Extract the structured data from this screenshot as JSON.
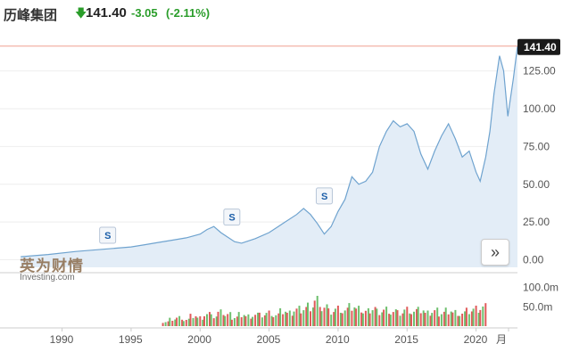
{
  "header": {
    "title": "历峰集团",
    "arrow_icon": "down-arrow-icon",
    "price": "141.40",
    "change": "-3.05",
    "change_pct": "(-2.11%)",
    "change_color": "#2a9d2a"
  },
  "watermark": {
    "brand_cn": "英为财情",
    "brand_en": "Investing.com"
  },
  "nav_button": {
    "icon": "double-chevron-right-icon",
    "label": "»"
  },
  "split_marker_label": "S",
  "colors": {
    "line": "#6fa3cf",
    "area": "#e3edf7",
    "price_line": "#f0a090",
    "badge": "#1a1a1a",
    "vol_up": "#e05a5a",
    "vol_down": "#6dbf6d"
  },
  "chart_data": [
    {
      "type": "area",
      "series": [
        {
          "x": [
            1987.0,
            1989.0,
            1991.0,
            1993.0,
            1995.0,
            1996.0,
            1997.0,
            1998.0,
            1999.0,
            2000.0,
            2000.5,
            2001.0,
            2001.5,
            2002.0,
            2002.5,
            2003.0,
            2004.0,
            2005.0,
            2006.0,
            2007.0,
            2007.5,
            2008.0,
            2008.5,
            2009.0,
            2009.5,
            2010.0,
            2010.5,
            2011.0,
            2011.5,
            2012.0,
            2012.5,
            2013.0,
            2013.5,
            2014.0,
            2014.5,
            2015.0,
            2015.5,
            2016.0,
            2016.5,
            2017.0,
            2017.5,
            2018.0,
            2018.5,
            2019.0,
            2019.5,
            2020.0,
            2020.3,
            2020.7,
            2021.0,
            2021.3,
            2021.7,
            2022.0,
            2022.3,
            2022.7,
            2023.0
          ],
          "y": [
            2.0,
            3.5,
            5.5,
            7.0,
            8.5,
            10.0,
            11.5,
            13.0,
            14.5,
            17.0,
            20.0,
            22.0,
            18.0,
            15.0,
            12.0,
            11.0,
            14.0,
            18.0,
            24.0,
            30.0,
            34.0,
            30.0,
            24.0,
            17.0,
            22.0,
            32.0,
            40.0,
            55.0,
            50.0,
            52.0,
            58.0,
            75.0,
            85.0,
            92.0,
            88.0,
            90.0,
            85.0,
            70.0,
            60.0,
            72.0,
            82.0,
            90.0,
            80.0,
            68.0,
            72.0,
            58.0,
            52.0,
            68.0,
            85.0,
            110.0,
            135.0,
            125.0,
            95.0,
            120.0,
            141.4
          ]
        }
      ],
      "ylim": [
        -5,
        146
      ],
      "y_ticks": [
        "0.00",
        "25.00",
        "50.00",
        "75.00",
        "100.00",
        "125.00"
      ],
      "x_ticks": [
        "1990",
        "1995",
        "2000",
        "2005",
        "2010",
        "2015",
        "2020",
        "月"
      ],
      "last_price_label": "141.40",
      "xlim": [
        1985.5,
        2023.0
      ]
    },
    {
      "type": "bar",
      "title": "volume",
      "y_ticks": [
        "100.0m",
        "50.0m"
      ],
      "ylim": [
        0,
        115
      ],
      "x": [
        1997.5,
        1998.0,
        1998.5,
        1999.0,
        1999.5,
        2000.0,
        2000.5,
        2001.0,
        2001.5,
        2002.0,
        2002.5,
        2003.0,
        2003.5,
        2004.0,
        2004.5,
        2005.0,
        2005.5,
        2006.0,
        2006.5,
        2007.0,
        2007.5,
        2008.0,
        2008.5,
        2009.0,
        2009.5,
        2010.0,
        2010.5,
        2011.0,
        2011.5,
        2012.0,
        2012.5,
        2013.0,
        2013.5,
        2014.0,
        2014.5,
        2015.0,
        2015.5,
        2016.0,
        2016.5,
        2017.0,
        2017.5,
        2018.0,
        2018.5,
        2019.0,
        2019.5,
        2020.0,
        2020.5
      ],
      "values": [
        15,
        25,
        30,
        22,
        35,
        28,
        40,
        32,
        45,
        38,
        30,
        42,
        35,
        40,
        38,
        44,
        36,
        48,
        42,
        55,
        60,
        70,
        90,
        65,
        50,
        58,
        52,
        62,
        55,
        48,
        60,
        52,
        58,
        50,
        45,
        55,
        48,
        52,
        42,
        50,
        45,
        55,
        48,
        44,
        52,
        58,
        65
      ]
    }
  ]
}
